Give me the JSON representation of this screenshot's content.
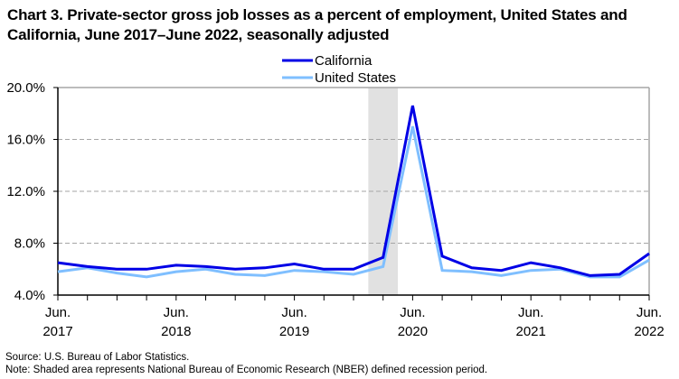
{
  "title": "Chart 3. Private-sector gross job losses as a percent of employment, United States and California, June 2017–June 2022, seasonally adjusted",
  "footer": {
    "source": "Source: U.S. Bureau of Labor Statistics.",
    "note": "Note: Shaded area represents National Bureau of Economic Research (NBER) defined recession period."
  },
  "chart_data": {
    "type": "line",
    "title": "Chart 3. Private-sector gross job losses as a percent of employment, United States and California, June 2017–June 2022, seasonally adjusted",
    "xlabel": "",
    "ylabel": "",
    "x": [
      "Jun 2017",
      "Sep 2017",
      "Dec 2017",
      "Mar 2018",
      "Jun 2018",
      "Sep 2018",
      "Dec 2018",
      "Mar 2019",
      "Jun 2019",
      "Sep 2019",
      "Dec 2019",
      "Mar 2020",
      "Jun 2020",
      "Sep 2020",
      "Dec 2020",
      "Mar 2021",
      "Jun 2021",
      "Sep 2021",
      "Dec 2021",
      "Mar 2022",
      "Jun 2022"
    ],
    "x_tick_labels": [
      {
        "index": 0,
        "line1": "Jun.",
        "line2": "2017"
      },
      {
        "index": 4,
        "line1": "Jun.",
        "line2": "2018"
      },
      {
        "index": 8,
        "line1": "Jun.",
        "line2": "2019"
      },
      {
        "index": 12,
        "line1": "Jun.",
        "line2": "2020"
      },
      {
        "index": 16,
        "line1": "Jun.",
        "line2": "2021"
      },
      {
        "index": 20,
        "line1": "Jun.",
        "line2": "2022"
      }
    ],
    "y_ticks": [
      4,
      8,
      12,
      16,
      20
    ],
    "y_tick_labels": [
      "4.0%",
      "8.0%",
      "12.0%",
      "16.0%",
      "20.0%"
    ],
    "ylim": [
      4,
      20
    ],
    "grid": "horizontal dashed",
    "legend_position": "top-center",
    "recession_shading": {
      "from_index": 10.5,
      "to_index": 11.5,
      "color": "#e1e1e1"
    },
    "series": [
      {
        "name": "California",
        "color": "#0000e6",
        "values": [
          6.5,
          6.2,
          6.0,
          6.0,
          6.3,
          6.2,
          6.0,
          6.1,
          6.4,
          6.0,
          6.0,
          6.9,
          18.6,
          7.0,
          6.1,
          5.9,
          6.5,
          6.1,
          5.5,
          5.6,
          7.2
        ]
      },
      {
        "name": "United States",
        "color": "#7fbfff",
        "values": [
          5.8,
          6.1,
          5.7,
          5.4,
          5.8,
          6.0,
          5.6,
          5.5,
          5.9,
          5.8,
          5.6,
          6.2,
          17.0,
          5.9,
          5.8,
          5.5,
          5.9,
          6.0,
          5.4,
          5.4,
          6.7
        ]
      }
    ]
  }
}
